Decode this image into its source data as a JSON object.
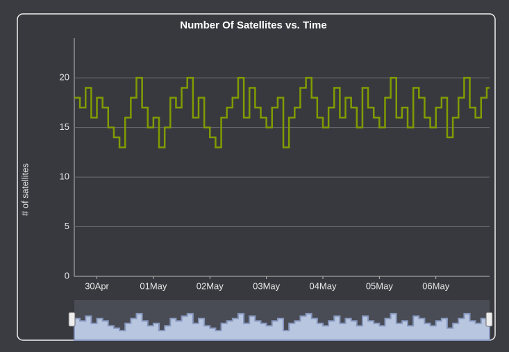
{
  "chart_data": {
    "type": "line",
    "title": "Number Of Satellites vs. Time",
    "y_label": "# of satellites",
    "x": [
      -0.4,
      -0.3,
      -0.2,
      -0.1,
      0,
      0.1,
      0.2,
      0.3,
      0.4,
      0.5,
      0.6,
      0.7,
      0.8,
      0.9,
      1,
      1.1,
      1.2,
      1.3,
      1.4,
      1.5,
      1.6,
      1.7,
      1.8,
      1.9,
      2,
      2.1,
      2.2,
      2.3,
      2.4,
      2.5,
      2.6,
      2.7,
      2.8,
      2.9,
      3,
      3.1,
      3.2,
      3.3,
      3.4,
      3.5,
      3.6,
      3.7,
      3.8,
      3.9,
      4,
      4.1,
      4.2,
      4.3,
      4.4,
      4.5,
      4.6,
      4.7,
      4.8,
      4.9,
      5,
      5.1,
      5.2,
      5.3,
      5.4,
      5.5,
      5.6,
      5.7,
      5.8,
      5.9,
      6,
      6.1,
      6.2,
      6.3,
      6.4,
      6.5,
      6.6,
      6.7,
      6.8,
      6.9
    ],
    "values": [
      18,
      17,
      19,
      16,
      18,
      17,
      15,
      14,
      13,
      16,
      18,
      20,
      17,
      15,
      16,
      13,
      15,
      18,
      17,
      19,
      20,
      16,
      18,
      15,
      14,
      13,
      16,
      17,
      18,
      20,
      16,
      19,
      17,
      16,
      15,
      17,
      18,
      13,
      16,
      17,
      19,
      20,
      18,
      16,
      15,
      17,
      19,
      16,
      18,
      17,
      15,
      19,
      17,
      16,
      15,
      18,
      20,
      16,
      17,
      15,
      19,
      18,
      16,
      15,
      17,
      18,
      14,
      16,
      18,
      20,
      17,
      16,
      18,
      19
    ],
    "color": "#7f9c00",
    "xlim": [
      -0.4,
      6.95
    ],
    "xticks": [
      {
        "value": 0,
        "label": "30Apr"
      },
      {
        "value": 1,
        "label": "01May"
      },
      {
        "value": 2,
        "label": "02May"
      },
      {
        "value": 3,
        "label": "03May"
      },
      {
        "value": 4,
        "label": "04May"
      },
      {
        "value": 5,
        "label": "05May"
      },
      {
        "value": 6,
        "label": "06May"
      }
    ],
    "ylim": [
      0,
      24
    ],
    "yticks": [
      0,
      5,
      10,
      15,
      20
    ],
    "grid": true
  }
}
